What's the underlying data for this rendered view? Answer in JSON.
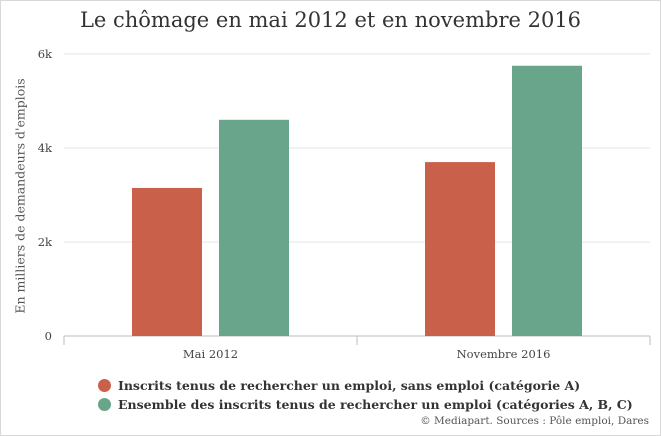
{
  "chart_data": {
    "type": "bar",
    "title": "Le chômage en mai 2012 et en novembre 2016",
    "xlabel": "",
    "ylabel": "En milliers de demandeurs d'emplois",
    "categories": [
      "Mai 2012",
      "Novembre 2016"
    ],
    "series": [
      {
        "name": "Inscrits tenus de rechercher un emploi, sans emploi (catégorie A)",
        "color": "#c8604a",
        "values": [
          3150,
          3700
        ]
      },
      {
        "name": "Ensemble des inscrits tenus de rechercher un emploi (catégories A, B, C)",
        "color": "#68a58a",
        "values": [
          4600,
          5750
        ]
      }
    ],
    "ylim": [
      0,
      6000
    ],
    "yticks": [
      0,
      2000,
      4000,
      6000
    ],
    "ytick_labels": [
      "0",
      "2k",
      "4k",
      "6k"
    ],
    "grid": true,
    "legend_position": "bottom-left",
    "source": "© Mediapart. Sources : Pôle emploi, Dares"
  }
}
